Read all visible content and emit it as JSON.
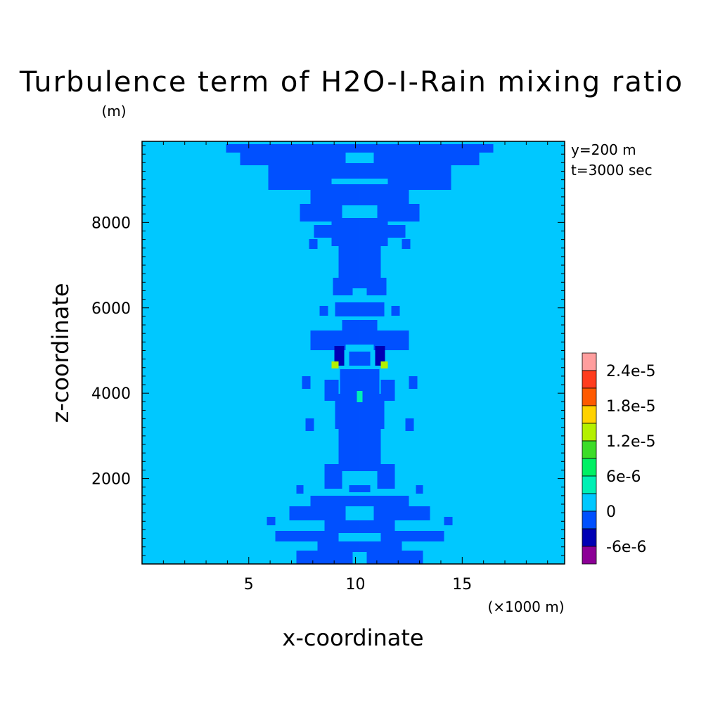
{
  "chart_data": {
    "type": "heatmap",
    "title": "Turbulence term of H2O-I-Rain mixing ratio",
    "xlabel": "x-coordinate",
    "ylabel": "z-coordinate",
    "x_unit": "(×1000 m)",
    "y_unit": "(m)",
    "xlim": [
      0,
      19.8
    ],
    "ylim": [
      0,
      9900
    ],
    "x_ticks": [
      "5",
      "10",
      "15"
    ],
    "y_ticks": [
      "2000",
      "4000",
      "6000",
      "8000"
    ],
    "annotations": [
      "y=200 m",
      "t=3000 sec"
    ],
    "colorbar": {
      "levels": [
        "2.4e-5",
        "1.8e-5",
        "1.2e-5",
        "6e-6",
        "0",
        "-6e-6"
      ],
      "colors": [
        "#ff9e9e",
        "#ff3c1e",
        "#ff5a00",
        "#ffd200",
        "#b4f000",
        "#3cdc28",
        "#00f064",
        "#00f0b4",
        "#00c8ff",
        "#0050ff",
        "#0000b4",
        "#8c0096"
      ]
    },
    "field": {
      "background_value": "0",
      "background_color": "#00c8ff",
      "negative_color": "#0050ff",
      "strong_negative_color": "#0000b4",
      "positive_color": "#00f0b4",
      "strong_positive_color": "#3cdc28",
      "peak_color": "#b4f000"
    }
  }
}
